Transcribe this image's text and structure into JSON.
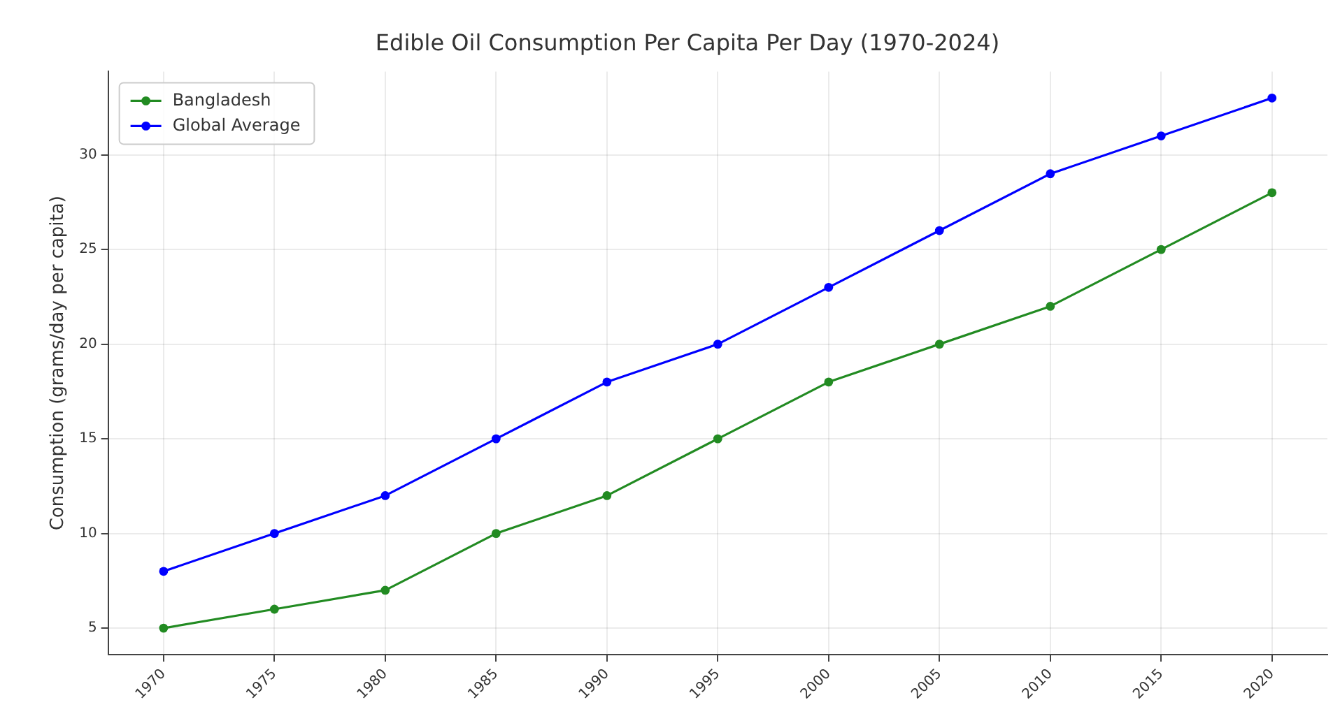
{
  "chart_data": {
    "type": "line",
    "title": "Edible Oil Consumption Per Capita Per Day (1970-2024)",
    "ylabel": "Consumption (grams/day per capita)",
    "categories": [
      "1970",
      "1975",
      "1980",
      "1985",
      "1990",
      "1995",
      "2000",
      "2005",
      "2010",
      "2015",
      "2020"
    ],
    "series": [
      {
        "name": "Bangladesh",
        "color": "#228b22",
        "values": [
          5,
          6,
          7,
          10,
          12,
          15,
          18,
          20,
          22,
          25,
          28
        ]
      },
      {
        "name": "Global Average",
        "color": "#0000ff",
        "values": [
          8,
          10,
          12,
          15,
          18,
          20,
          23,
          26,
          29,
          31,
          33
        ]
      }
    ],
    "ylim": [
      3.6,
      34.4
    ],
    "yticks": [
      5,
      10,
      15,
      20,
      25,
      30
    ],
    "grid": true,
    "legend": "top left",
    "marker": "circle",
    "line_style": "solid"
  }
}
